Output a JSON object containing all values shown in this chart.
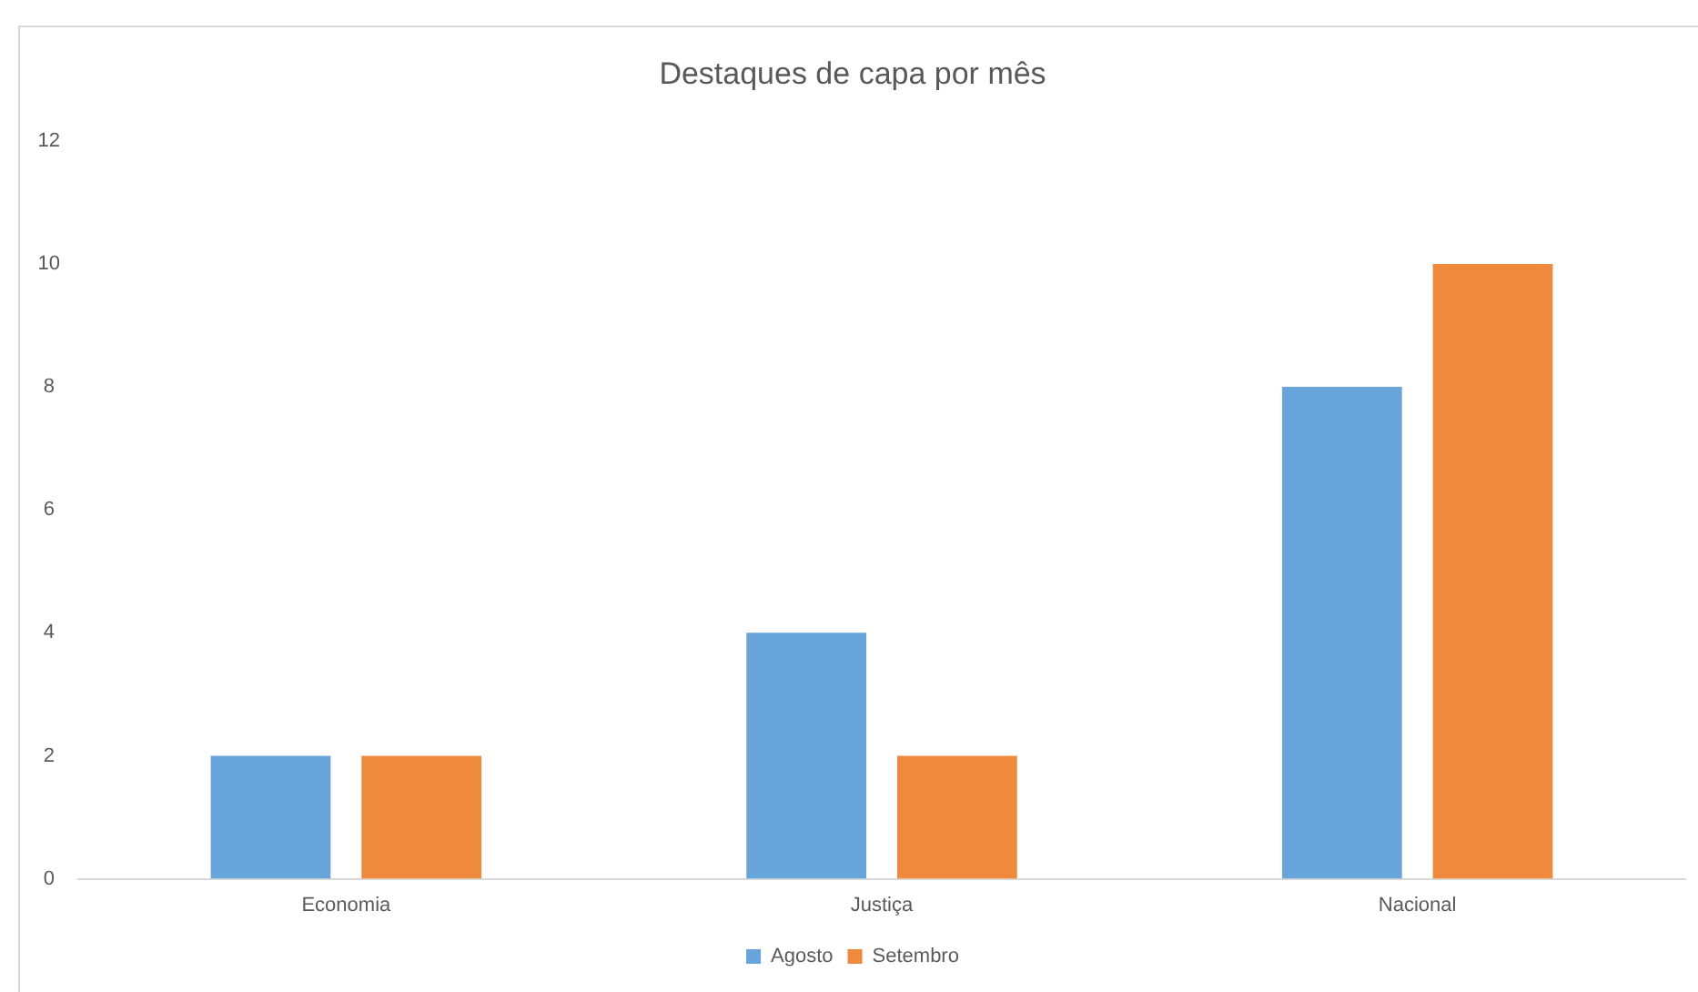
{
  "chart_data": {
    "type": "bar",
    "title": "Destaques de capa por mês",
    "categories": [
      "Economia",
      "Justiça",
      "Nacional"
    ],
    "series": [
      {
        "name": "Agosto",
        "color": "#67a5da",
        "values": [
          2,
          4,
          8
        ]
      },
      {
        "name": "Setembro",
        "color": "#ef8a3c",
        "values": [
          2,
          2,
          10
        ]
      }
    ],
    "ylim": [
      0,
      12
    ],
    "yticks": [
      0,
      2,
      4,
      6,
      8,
      10,
      12
    ],
    "legend": "bottom"
  }
}
